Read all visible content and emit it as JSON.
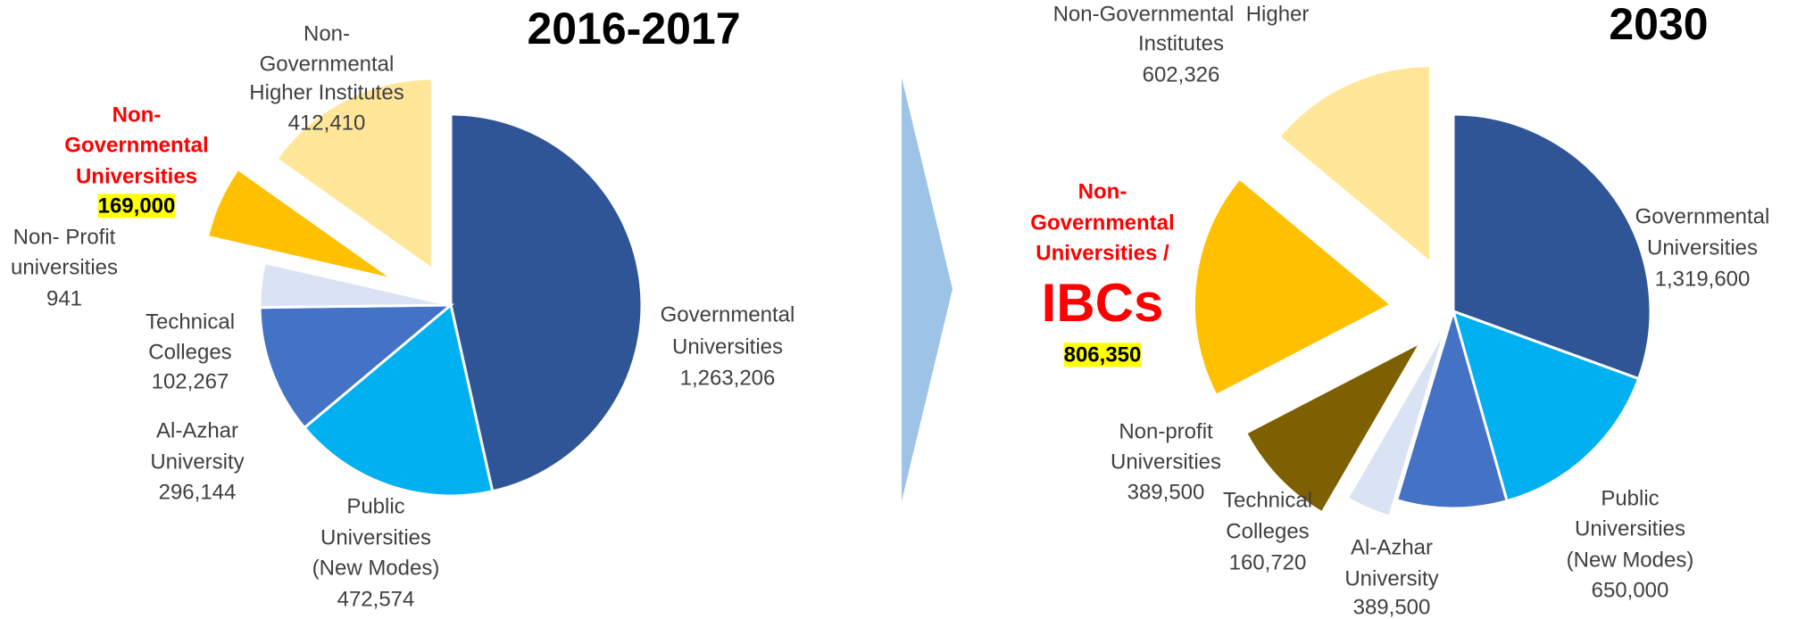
{
  "chart_data": [
    {
      "type": "pie",
      "title": "2016-2017",
      "categories": [
        [
          "Governmental",
          "Universities"
        ],
        [
          "Public",
          "Universities",
          "(New Modes)"
        ],
        [
          "Al-Azhar",
          "University"
        ],
        [
          "Technical",
          "Colleges"
        ],
        [
          "Non- Profit",
          "universities"
        ],
        [
          "Non-",
          "Governmental",
          "Universities"
        ],
        [
          "Non-",
          "Governmental",
          "Higher Institutes"
        ]
      ],
      "values": [
        1263206,
        472574,
        296144,
        102267,
        941,
        169000,
        412410
      ],
      "value_labels": [
        "1,263,206",
        "472,574",
        "296,144",
        "102,267",
        "941",
        "169,000",
        "412,410"
      ],
      "colors": [
        "#2f5597",
        "#00b0f0",
        "#4472c4",
        "#dae3f3",
        "#7f6000",
        "#ffc000",
        "#ffe699"
      ],
      "exploded": [
        false,
        false,
        false,
        false,
        false,
        true,
        true
      ],
      "highlighted": 5,
      "highlight_color": "#ff0000",
      "highlight_background": "#ffff00"
    },
    {
      "type": "pie",
      "title": "2030",
      "categories": [
        [
          "Governmental",
          "Universities"
        ],
        [
          "Public",
          "Universities",
          "(New Modes)"
        ],
        [
          "Al-Azhar",
          "University"
        ],
        [
          "Technical",
          "Colleges"
        ],
        [
          "Non-profit",
          "Universities"
        ],
        [
          "Non-",
          "Governmental",
          "Universities /",
          "IBCs"
        ],
        [
          "Non-Governmental  Higher",
          "Institutes"
        ]
      ],
      "values": [
        1319600,
        650000,
        389500,
        160720,
        389500,
        806350,
        602326
      ],
      "value_labels": [
        "1,319,600",
        "650,000",
        "389,500",
        "160,720",
        "389,500",
        "806,350",
        "602,326"
      ],
      "colors": [
        "#2f5597",
        "#00b0f0",
        "#4472c4",
        "#dae3f3",
        "#7f6000",
        "#ffc000",
        "#ffe699"
      ],
      "exploded": [
        false,
        false,
        false,
        true,
        true,
        true,
        true
      ],
      "highlighted": 5,
      "highlight_color": "#ff0000",
      "highlight_background": "#ffff00"
    }
  ]
}
